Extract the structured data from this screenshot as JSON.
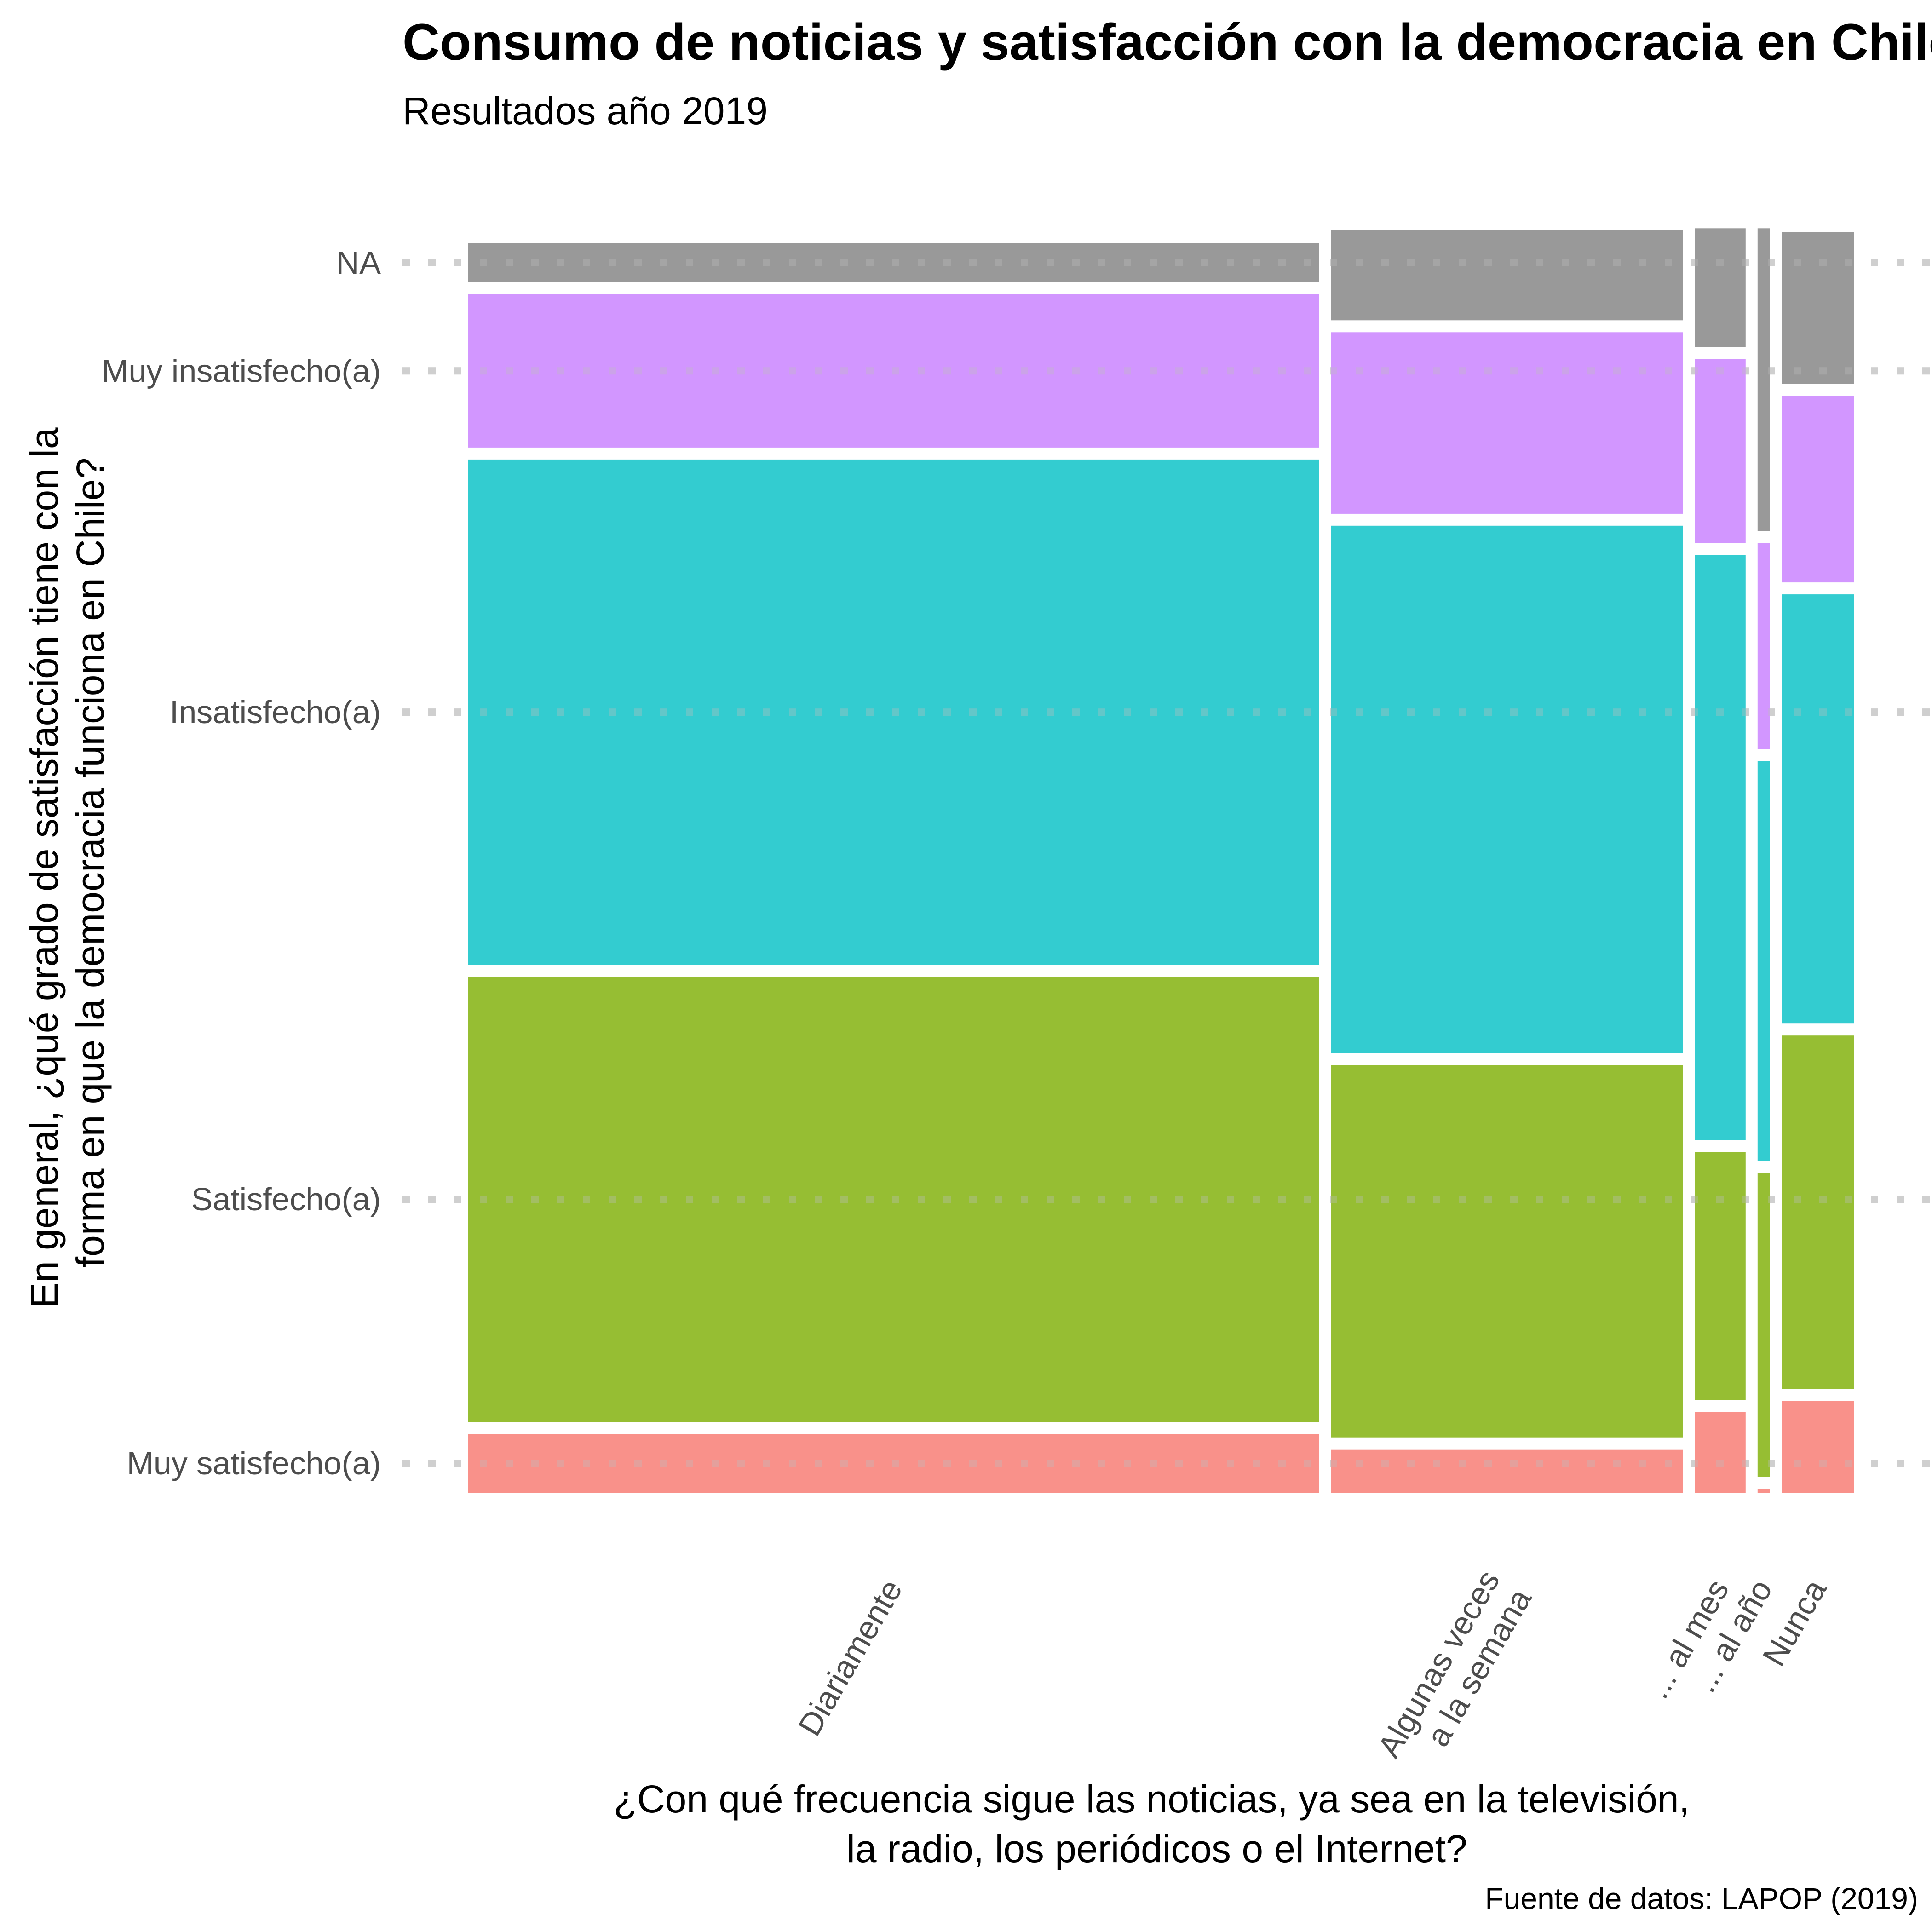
{
  "chart_data": {
    "type": "mosaic",
    "title": "Consumo de noticias y satisfacción con la democracia en Chile",
    "subtitle": "Resultados año 2019",
    "xlabel_lines": [
      "¿Con qué frecuencia sigue las noticias, ya sea en la televisión,",
      "la radio, los periódicos o el Internet?"
    ],
    "ylabel_lines": [
      "En general, ¿qué grado de satisfacción tiene con la",
      "forma en que la democracia funciona en Chile?"
    ],
    "caption": "Fuente de datos: LAPOP (2019)",
    "y_categories": [
      "Muy satisfecho(a)",
      "Satisfecho(a)",
      "Insatisfecho(a)",
      "Muy insatisfecho(a)",
      "NA"
    ],
    "colors": [
      "#F8766D",
      "#7CAE00",
      "#00BFC4",
      "#C77CFF",
      "#808080"
    ],
    "columns": [
      {
        "label_lines": [
          "Diariamente"
        ],
        "share": 0.636,
        "fractions": [
          0.048,
          0.363,
          0.412,
          0.125,
          0.032
        ]
      },
      {
        "label_lines": [
          "Algunas veces",
          "a la semana"
        ],
        "share": 0.263,
        "fractions": [
          0.035,
          0.304,
          0.43,
          0.148,
          0.074
        ]
      },
      {
        "label_lines": [
          "... al mes"
        ],
        "share": 0.038,
        "fractions": [
          0.066,
          0.202,
          0.477,
          0.15,
          0.097
        ]
      },
      {
        "label_lines": [
          "... al año"
        ],
        "share": 0.009,
        "fractions": [
          0.003,
          0.248,
          0.326,
          0.168,
          0.247
        ]
      },
      {
        "label_lines": [
          "Nunca"
        ],
        "share": 0.054,
        "fractions": [
          0.075,
          0.288,
          0.35,
          0.152,
          0.124
        ]
      }
    ]
  }
}
